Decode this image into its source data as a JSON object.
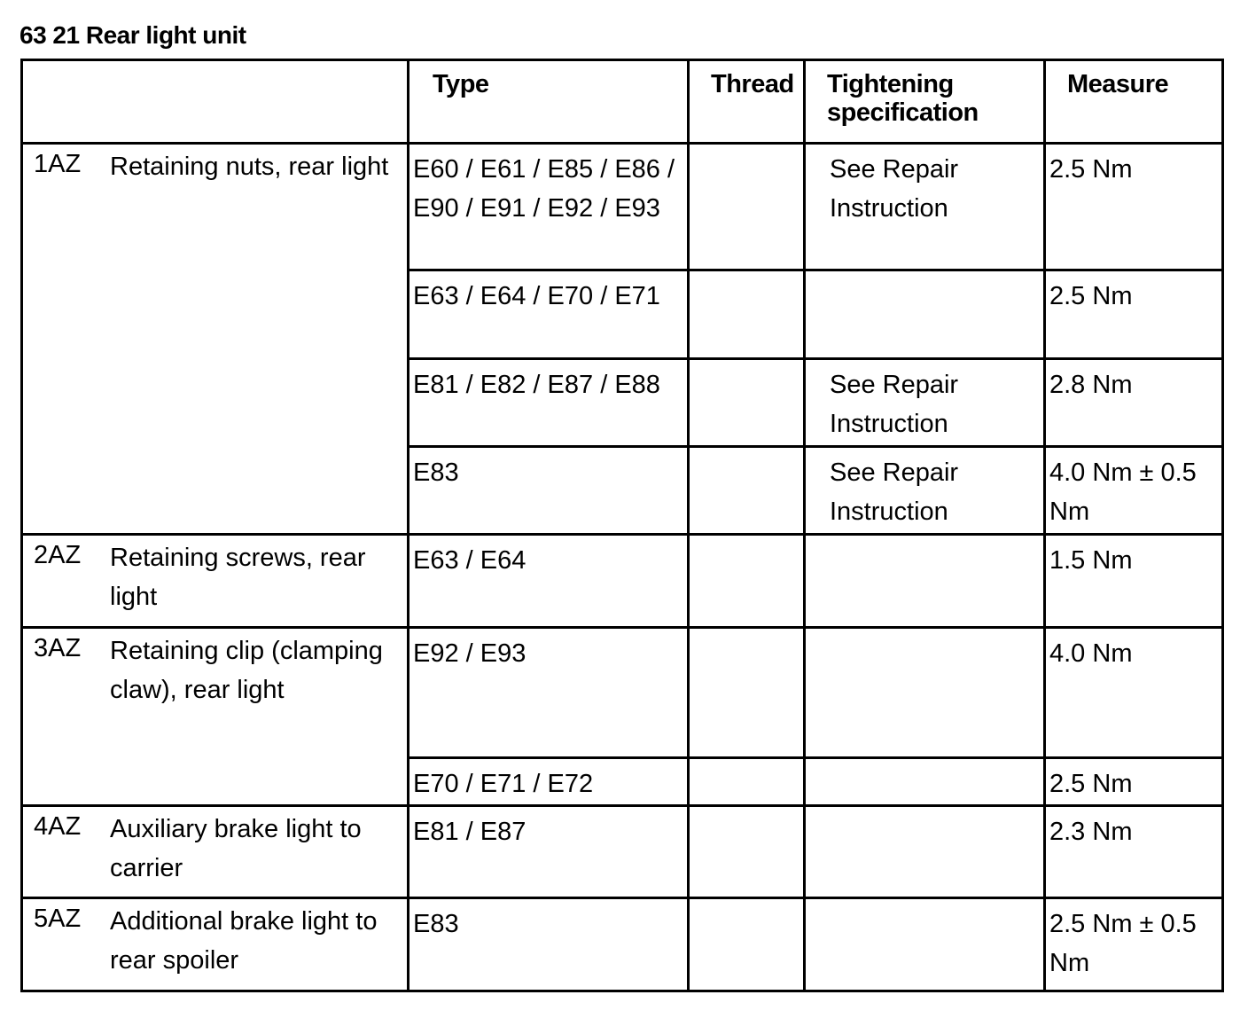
{
  "title": "63 21 Rear light unit",
  "headers": {
    "item": "",
    "type": "Type",
    "thread": "Thread",
    "spec": "Tightening specification",
    "measure": "Measure"
  },
  "items": [
    {
      "code": "1AZ",
      "description": "Retaining nuts, rear light",
      "rows": [
        {
          "type": "E60 / E61 / E85 / E86 / E90 / E91 / E92 / E93",
          "thread": "",
          "spec": "See Repair Instruction",
          "measure": "2.5 Nm"
        },
        {
          "type": "E63 / E64 / E70 / E71",
          "thread": "",
          "spec": "",
          "measure": "2.5 Nm"
        },
        {
          "type": "E81 / E82 / E87 / E88",
          "thread": "",
          "spec": "See Repair Instruction",
          "measure": "2.8 Nm"
        },
        {
          "type": "E83",
          "thread": "",
          "spec": "See Repair Instruction",
          "measure": "4.0 Nm ± 0.5 Nm"
        }
      ]
    },
    {
      "code": "2AZ",
      "description": "Retaining screws, rear light",
      "rows": [
        {
          "type": "E63 / E64",
          "thread": "",
          "spec": "",
          "measure": "1.5 Nm"
        }
      ]
    },
    {
      "code": "3AZ",
      "description": "Retaining clip (clamping claw), rear light",
      "rows": [
        {
          "type": "E92 / E93",
          "thread": "",
          "spec": "",
          "measure": "4.0 Nm"
        },
        {
          "type": "E70 / E71 / E72",
          "thread": "",
          "spec": "",
          "measure": "2.5 Nm"
        }
      ]
    },
    {
      "code": "4AZ",
      "description": "Auxiliary brake light to carrier",
      "rows": [
        {
          "type": "E81 / E87",
          "thread": "",
          "spec": "",
          "measure": "2.3 Nm"
        }
      ]
    },
    {
      "code": "5AZ",
      "description": "Additional brake light to rear spoiler",
      "rows": [
        {
          "type": "E83",
          "thread": "",
          "spec": "",
          "measure": "2.5 Nm ± 0.5 Nm"
        }
      ]
    }
  ]
}
